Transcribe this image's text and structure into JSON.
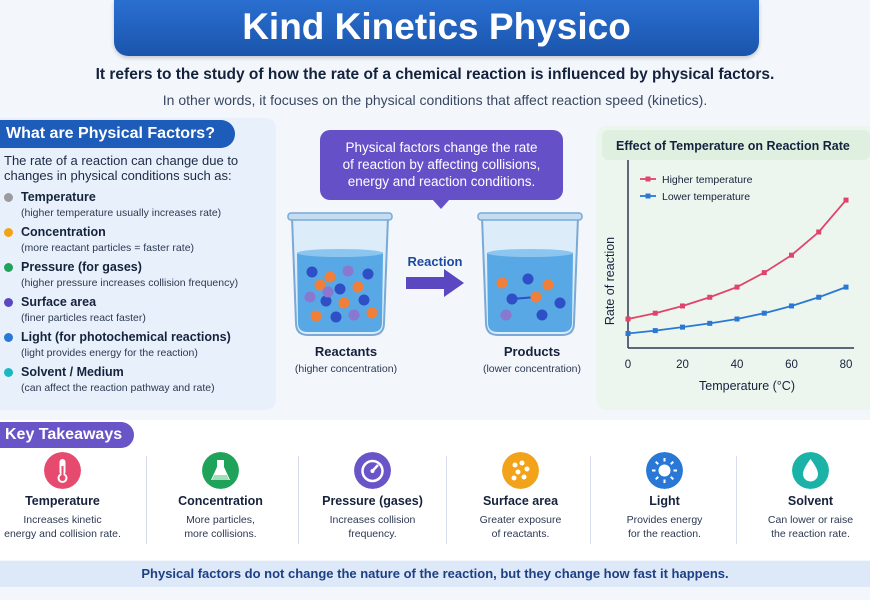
{
  "header": {
    "title": "Kind Kinetics Physico",
    "subtitle": "It refers to the study of how the rate of a chemical reaction is influenced by physical factors.",
    "subtitle2": "In other words, it focuses on the physical conditions that affect reaction speed (kinetics)."
  },
  "left": {
    "heading": "What are Physical Factors?",
    "intro": "The rate of a reaction can change due to changes in physical conditions such as:",
    "factors": [
      {
        "name": "Temperature",
        "desc": "(higher temperature usually increases rate)",
        "color": "#9a9aa0"
      },
      {
        "name": "Concentration",
        "desc": "(more reactant particles = faster rate)",
        "color": "#f2a31a"
      },
      {
        "name": "Pressure (for gases)",
        "desc": "(higher pressure increases collision frequency)",
        "color": "#1fa35a"
      },
      {
        "name": "Surface area",
        "desc": "(finer particles react faster)",
        "color": "#5b48c0"
      },
      {
        "name": "Light (for photochemical reactions)",
        "desc": "(light provides energy for the reaction)",
        "color": "#2a78d6"
      },
      {
        "name": "Solvent / Medium",
        "desc": "(can affect the reaction pathway and rate)",
        "color": "#19b9c4"
      }
    ]
  },
  "middle": {
    "callout": [
      "Physical factors change the rate",
      "of reaction by affecting collisions,",
      "energy and reaction conditions."
    ],
    "arrow_label": "Reaction",
    "reactants_label": "Reactants",
    "reactants_sub": "(higher concentration)",
    "products_label": "Products",
    "products_sub": "(lower concentration)"
  },
  "chart_data": {
    "type": "line",
    "title": "Effect of Temperature on Reaction Rate",
    "xlabel": "Temperature (°C)",
    "ylabel": "Rate of reaction",
    "xlim": [
      0,
      80
    ],
    "xticks": [
      0,
      20,
      40,
      60,
      80
    ],
    "legend_position": "top-left",
    "series": [
      {
        "name": "Higher temperature",
        "color": "#e0446a",
        "x": [
          0,
          10,
          20,
          30,
          40,
          50,
          60,
          70,
          80
        ],
        "y": [
          1.0,
          1.2,
          1.45,
          1.75,
          2.1,
          2.6,
          3.2,
          4.0,
          5.1
        ]
      },
      {
        "name": "Lower temperature",
        "color": "#2a78d6",
        "x": [
          0,
          10,
          20,
          30,
          40,
          50,
          60,
          70,
          80
        ],
        "y": [
          0.5,
          0.6,
          0.72,
          0.85,
          1.0,
          1.2,
          1.45,
          1.75,
          2.1
        ]
      }
    ]
  },
  "takeaways": {
    "heading": "Key Takeaways",
    "items": [
      {
        "name": "Temperature",
        "desc": [
          "Increases kinetic",
          "energy and collision rate."
        ],
        "icon": "thermometer-icon",
        "color": "#e64a6e"
      },
      {
        "name": "Concentration",
        "desc": [
          "More particles,",
          "more collisions."
        ],
        "icon": "flask-icon",
        "color": "#1fa35a"
      },
      {
        "name": "Pressure (gases)",
        "desc": [
          "Increases collision",
          "frequency."
        ],
        "icon": "gauge-icon",
        "color": "#6a55c8"
      },
      {
        "name": "Surface area",
        "desc": [
          "Greater exposure",
          "of reactants."
        ],
        "icon": "particles-icon",
        "color": "#f2a31a"
      },
      {
        "name": "Light",
        "desc": [
          "Provides energy",
          "for the reaction."
        ],
        "icon": "sun-icon",
        "color": "#2a78d6"
      },
      {
        "name": "Solvent",
        "desc": [
          "Can lower or raise",
          "the reaction rate."
        ],
        "icon": "droplet-icon",
        "color": "#1bb3a8"
      }
    ]
  },
  "footer": "Physical factors do not change the nature of the reaction, but they change how fast it happens."
}
